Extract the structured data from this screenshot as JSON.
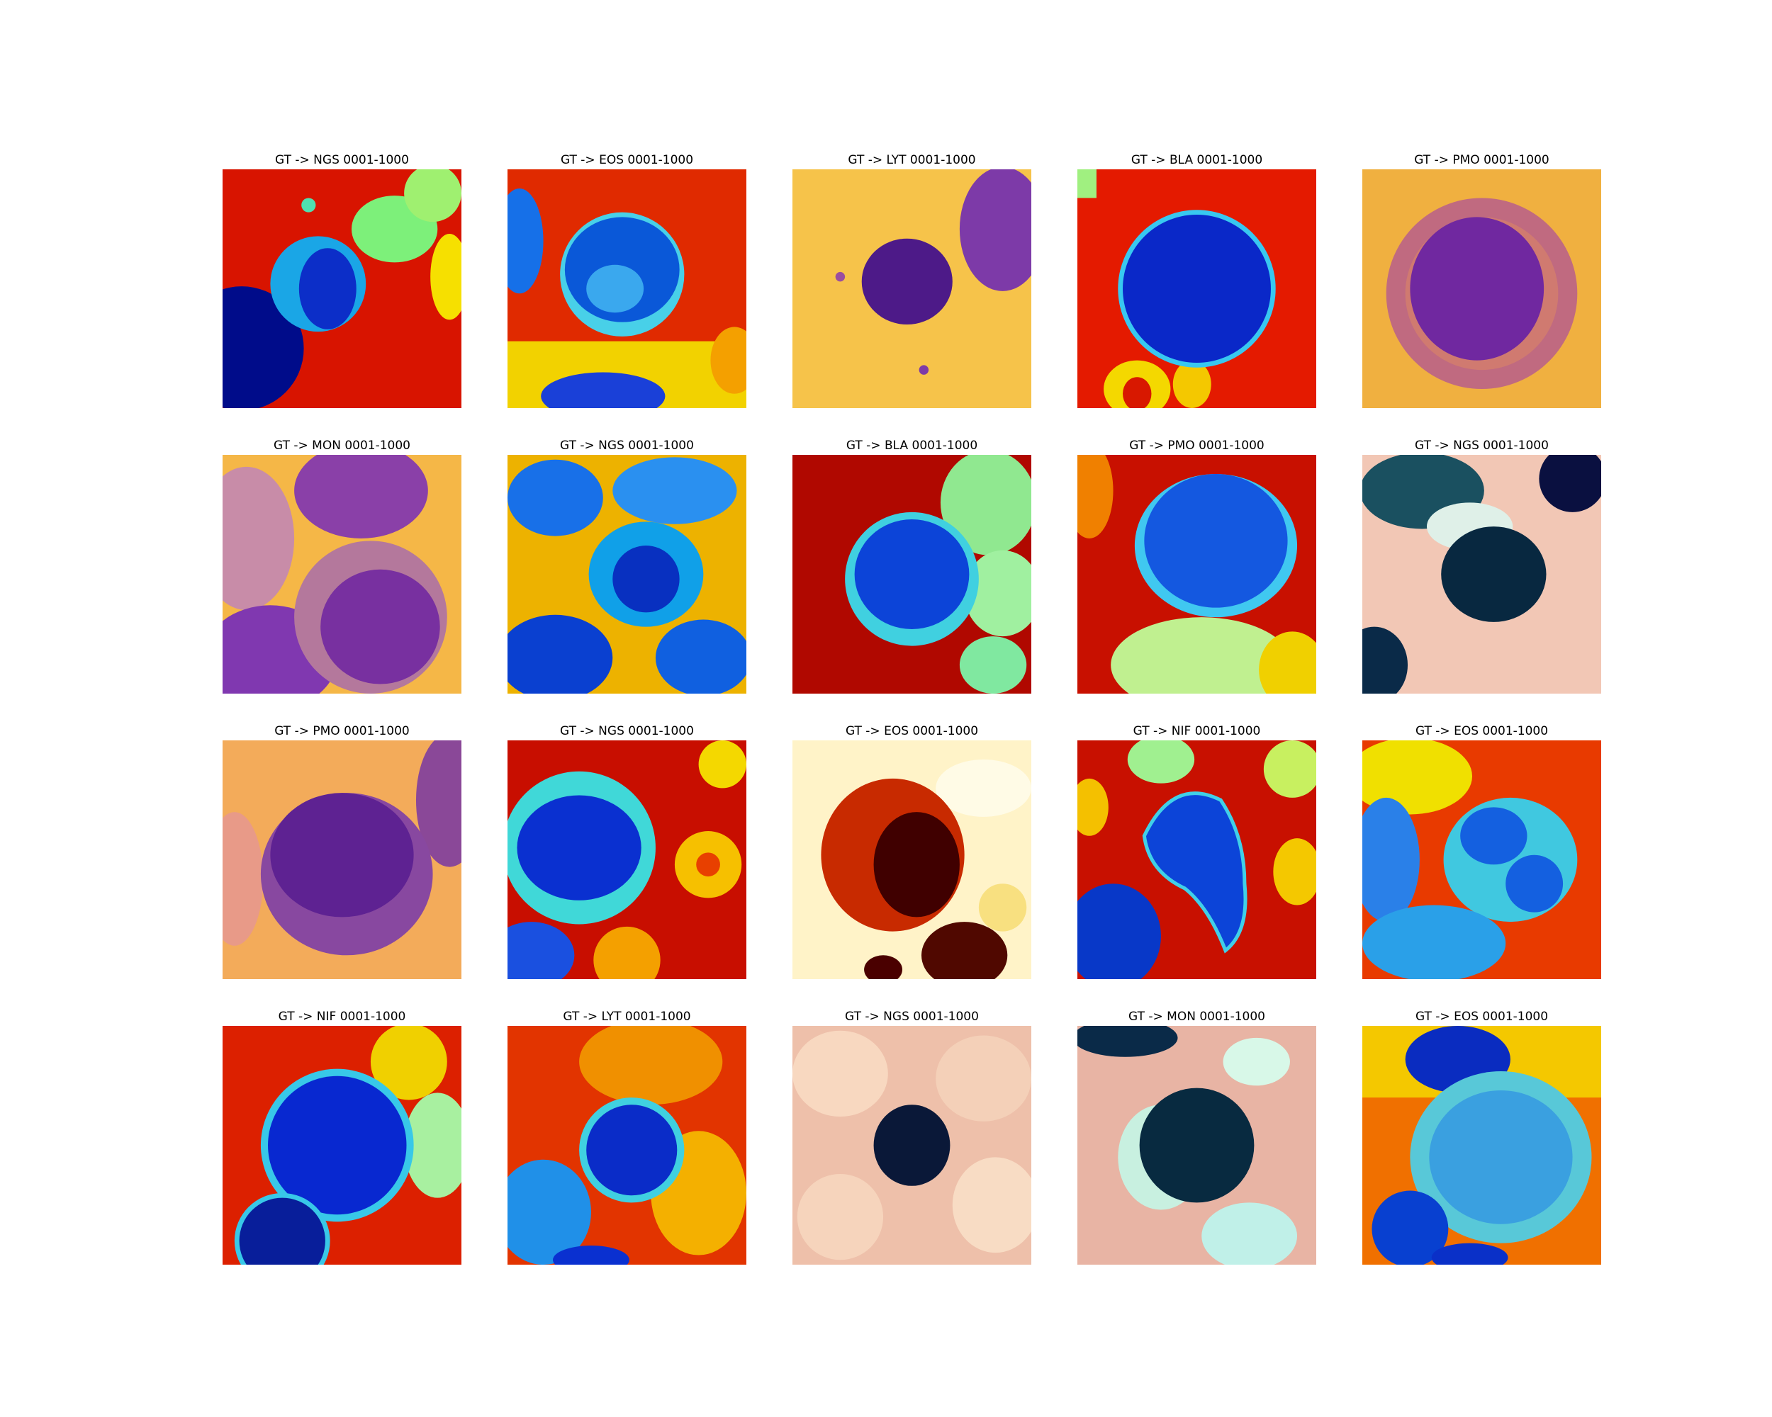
{
  "figure": {
    "tiles": [
      {
        "title": "GT -> NGS 0001-1000",
        "palette": "jet",
        "bg": "#d81400"
      },
      {
        "title": "GT -> EOS 0001-1000",
        "palette": "jet",
        "bg": "#e02a00"
      },
      {
        "title": "GT -> LYT 0001-1000",
        "palette": "plasma",
        "bg": "#f6c34a"
      },
      {
        "title": "GT -> BLA 0001-1000",
        "palette": "jet",
        "bg": "#e41a00"
      },
      {
        "title": "GT -> PMO 0001-1000",
        "palette": "plasma",
        "bg": "#f0b040"
      },
      {
        "title": "GT -> MON 0001-1000",
        "palette": "plasma",
        "bg": "#f5b747"
      },
      {
        "title": "GT -> NGS 0001-1000",
        "palette": "jet",
        "bg": "#f0f000"
      },
      {
        "title": "GT -> BLA 0001-1000",
        "palette": "jet",
        "bg": "#b00800"
      },
      {
        "title": "GT -> PMO 0001-1000",
        "palette": "jet",
        "bg": "#c81000"
      },
      {
        "title": "GT -> NGS 0001-1000",
        "palette": "ice",
        "bg": "#f2c7b5"
      },
      {
        "title": "GT -> PMO 0001-1000",
        "palette": "plasma",
        "bg": "#f3ab5a"
      },
      {
        "title": "GT -> NGS 0001-1000",
        "palette": "jet",
        "bg": "#c80e00"
      },
      {
        "title": "GT -> EOS 0001-1000",
        "palette": "hot",
        "bg": "#fff3c8"
      },
      {
        "title": "GT -> NIF 0001-1000",
        "palette": "jet",
        "bg": "#c81000"
      },
      {
        "title": "GT -> EOS 0001-1000",
        "palette": "jet",
        "bg": "#e83a00"
      },
      {
        "title": "GT -> NIF 0001-1000",
        "palette": "jet",
        "bg": "#dc2000"
      },
      {
        "title": "GT -> LYT 0001-1000",
        "palette": "jet",
        "bg": "#e23400"
      },
      {
        "title": "GT -> NGS 0001-1000",
        "palette": "ice",
        "bg": "#eec0aa"
      },
      {
        "title": "GT -> MON 0001-1000",
        "palette": "ice",
        "bg": "#e8b4a4"
      },
      {
        "title": "GT -> EOS 0001-1000",
        "palette": "jet",
        "bg": "#f07000"
      }
    ]
  }
}
